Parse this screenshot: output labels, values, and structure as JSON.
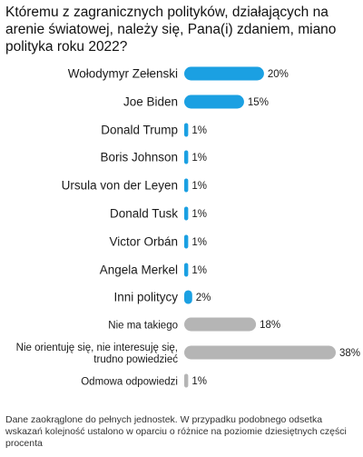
{
  "title": "Któremu z zagranicznych polityków, działających na arenie światowej, należy się, Pana(i) zdaniem, miano polityka roku 2022?",
  "note": "Dane zaokrąglone do pełnych jednostek. W przypadku podobnego odsetka wskazań kolejność ustalono w oparciu o różnice na poziomie dziesiętnych części procenta",
  "colors": {
    "politicians": "#1ba0e2",
    "other": "#b5b5b5"
  },
  "chart_data": {
    "type": "bar",
    "orientation": "horizontal",
    "categories": [
      "Wołodymyr Zełenski",
      "Joe Biden",
      "Donald Trump",
      "Boris Johnson",
      "Ursula von der Leyen",
      "Donald Tusk",
      "Victor Orbán",
      "Angela Merkel",
      "Inni politycy",
      "Nie ma takiego",
      "Nie orientuję się, nie interesuję się,|trudno powiedzieć",
      "Odmowa odpowiedzi"
    ],
    "values": [
      20,
      15,
      1,
      1,
      1,
      1,
      1,
      1,
      2,
      18,
      38,
      1
    ],
    "value_labels": [
      "20%",
      "15%",
      "1%",
      "1%",
      "1%",
      "1%",
      "1%",
      "1%",
      "2%",
      "18%",
      "38%",
      "1%"
    ],
    "groups": [
      "politicians",
      "politicians",
      "politicians",
      "politicians",
      "politicians",
      "politicians",
      "politicians",
      "politicians",
      "politicians",
      "other",
      "other",
      "other"
    ],
    "xlim": [
      0,
      38
    ],
    "grid": false,
    "legend": "none"
  }
}
